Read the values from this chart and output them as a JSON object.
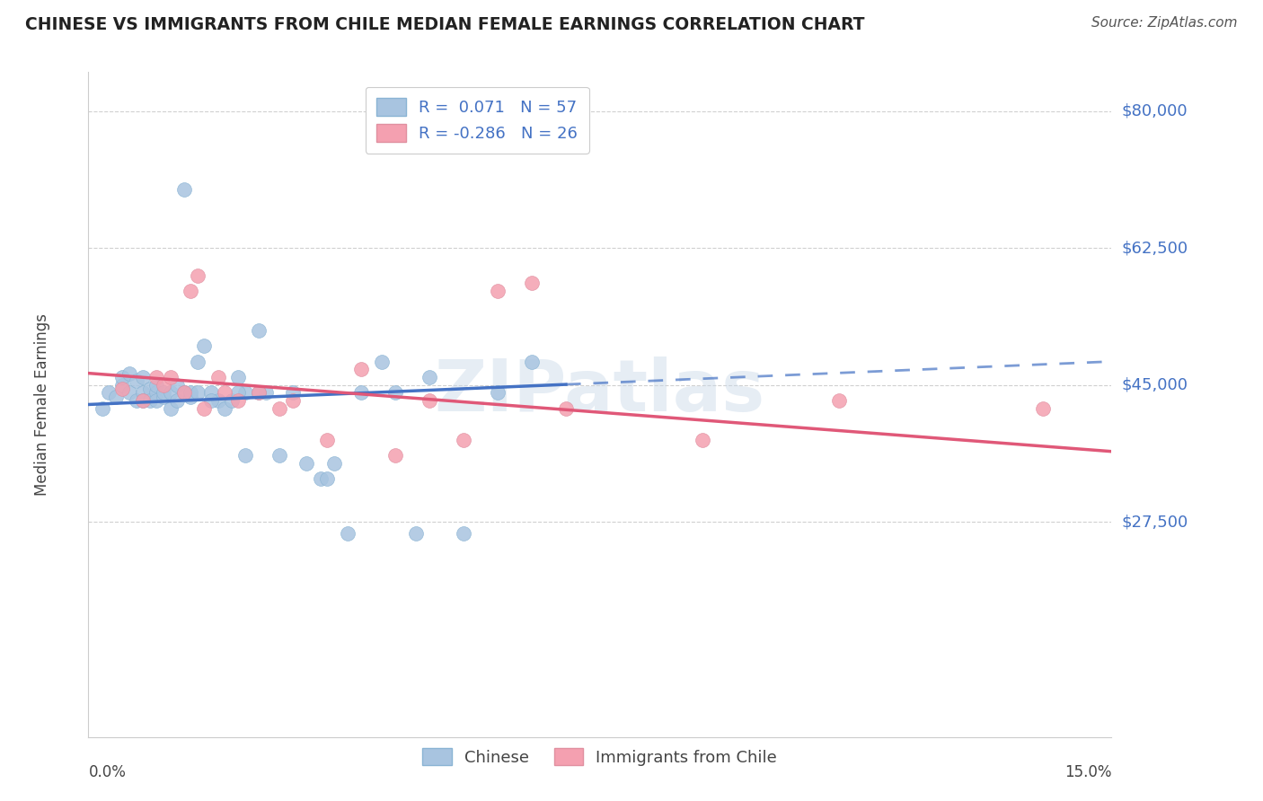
{
  "title": "CHINESE VS IMMIGRANTS FROM CHILE MEDIAN FEMALE EARNINGS CORRELATION CHART",
  "source": "Source: ZipAtlas.com",
  "ylabel": "Median Female Earnings",
  "yticks": [
    0,
    27500,
    45000,
    62500,
    80000
  ],
  "ytick_labels": [
    "",
    "$27,500",
    "$45,000",
    "$62,500",
    "$80,000"
  ],
  "xlim": [
    0.0,
    15.0
  ],
  "ylim": [
    0,
    85000
  ],
  "chinese_color": "#a8c4e0",
  "chile_color": "#f4a0b0",
  "chinese_line_color": "#4472c4",
  "chile_line_color": "#e05878",
  "R_chinese": "0.071",
  "N_chinese": 57,
  "R_chile": "-0.286",
  "N_chile": 26,
  "watermark": "ZIPatlas",
  "chinese_x": [
    0.2,
    0.3,
    0.4,
    0.5,
    0.5,
    0.6,
    0.6,
    0.7,
    0.7,
    0.8,
    0.8,
    0.8,
    0.9,
    0.9,
    1.0,
    1.0,
    1.0,
    1.1,
    1.1,
    1.2,
    1.2,
    1.3,
    1.3,
    1.4,
    1.5,
    1.5,
    1.6,
    1.6,
    1.7,
    1.8,
    1.9,
    2.0,
    2.1,
    2.2,
    2.3,
    2.5,
    2.6,
    2.8,
    3.0,
    3.2,
    3.4,
    3.6,
    4.0,
    4.3,
    4.5,
    5.0,
    5.5,
    6.0,
    6.5,
    2.5,
    3.8,
    2.2,
    1.8,
    2.3,
    3.5,
    4.8,
    1.4
  ],
  "chinese_y": [
    42000,
    44000,
    43500,
    45000,
    46000,
    44000,
    46500,
    43000,
    45500,
    44000,
    46000,
    43000,
    44500,
    43000,
    44000,
    43000,
    45000,
    43500,
    44000,
    42000,
    44000,
    43000,
    45000,
    44000,
    43500,
    44000,
    48000,
    44000,
    50000,
    44000,
    43000,
    42000,
    43000,
    46000,
    44000,
    52000,
    44000,
    36000,
    44000,
    35000,
    33000,
    35000,
    44000,
    48000,
    44000,
    46000,
    26000,
    44000,
    48000,
    44000,
    26000,
    44000,
    43000,
    36000,
    33000,
    26000,
    70000
  ],
  "chile_x": [
    0.5,
    0.8,
    1.0,
    1.1,
    1.2,
    1.4,
    1.5,
    1.6,
    1.7,
    1.9,
    2.0,
    2.2,
    2.5,
    2.8,
    3.0,
    3.5,
    4.0,
    4.5,
    5.0,
    5.5,
    6.0,
    6.5,
    7.0,
    9.0,
    11.0,
    14.0
  ],
  "chile_y": [
    44500,
    43000,
    46000,
    45000,
    46000,
    44000,
    57000,
    59000,
    42000,
    46000,
    44000,
    43000,
    44000,
    42000,
    43000,
    38000,
    47000,
    36000,
    43000,
    38000,
    57000,
    58000,
    42000,
    38000,
    43000,
    42000
  ],
  "blue_line_x0": 0.0,
  "blue_line_y0": 42500,
  "blue_line_x1": 15.0,
  "blue_line_y1": 48000,
  "blue_solid_end": 7.0,
  "pink_line_x0": 0.0,
  "pink_line_y0": 46500,
  "pink_line_x1": 15.0,
  "pink_line_y1": 36500
}
